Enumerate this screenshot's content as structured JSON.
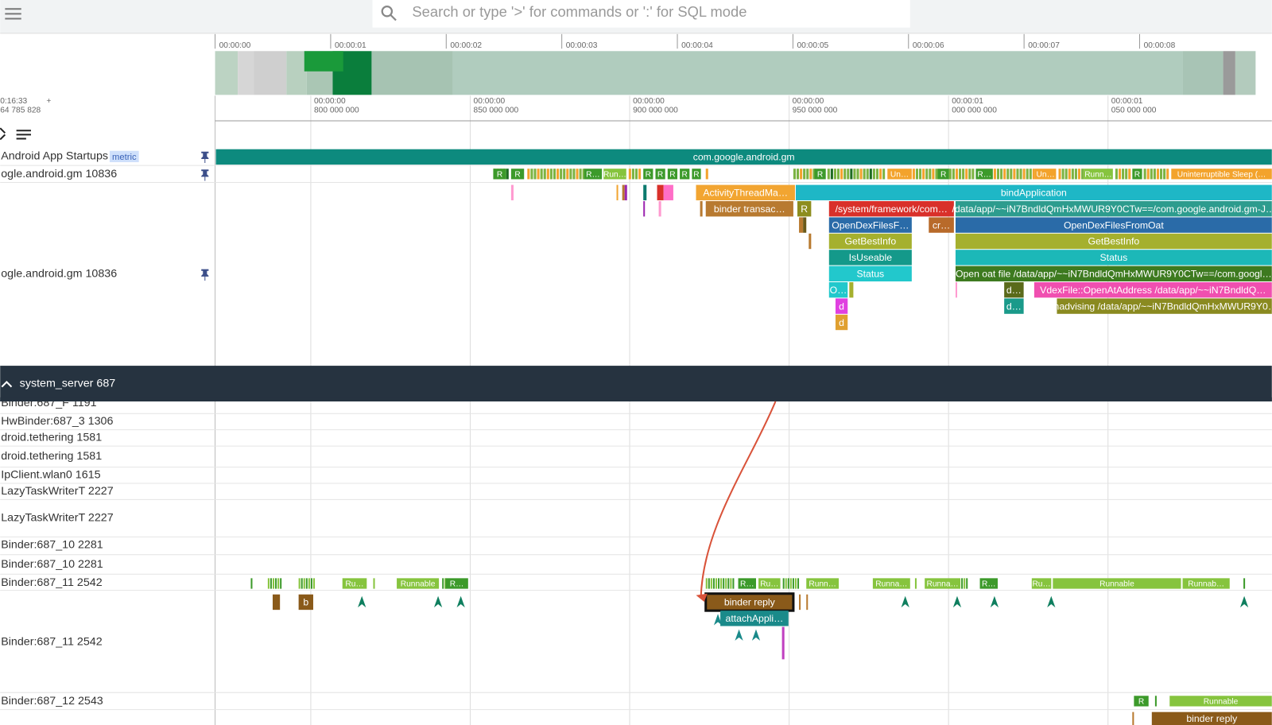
{
  "search": {
    "placeholder": "Search or type '>' for commands or ':' for SQL mode"
  },
  "overview": {
    "ticks": [
      "00:00:00",
      "00:00:01",
      "00:00:02",
      "00:00:03",
      "00:00:04",
      "00:00:05",
      "00:00:06",
      "00:00:07",
      "00:00:08"
    ]
  },
  "timeline": {
    "offset": {
      "time": "0:16:33",
      "plus": "+",
      "ns": "64 785 828"
    },
    "ticks": [
      {
        "line1": "00:00:00",
        "line2": "800 000 000"
      },
      {
        "line1": "00:00:00",
        "line2": "850 000 000"
      },
      {
        "line1": "00:00:00",
        "line2": "900 000 000"
      },
      {
        "line1": "00:00:00",
        "line2": "950 000 000"
      },
      {
        "line1": "00:00:01",
        "line2": "000 000 000"
      },
      {
        "line1": "00:00:01",
        "line2": "050 000 000"
      }
    ]
  },
  "tracks": [
    {
      "name": "Android App Startups",
      "tag": "metric",
      "slices": [
        "com.google.android.gm"
      ]
    },
    {
      "name": "ogle.android.gm 10836",
      "states": [
        "R",
        "R",
        "R…",
        "Run…",
        "R",
        "R",
        "R",
        "R",
        "R",
        "R",
        "Un…",
        "R",
        "R…",
        "Un…",
        "Runn…",
        "R",
        "Uninterruptible Sleep (…"
      ]
    },
    {
      "name": "ogle.android.gm 10836",
      "slices": [
        "ActivityThreadMa…",
        "bindApplication",
        "binder transac…",
        "R",
        "/system/framework/com…",
        "/data/app/~~iN7BndldQmHxMWUR9Y0CTw==/com.google.android.gm-J…",
        "OpenDexFilesF…",
        "cr…",
        "OpenDexFilesFromOat",
        "GetBestInfo",
        "GetBestInfo",
        "IsUseable",
        "Status",
        "Status",
        "Open oat file /data/app/~~iN7BndldQmHxMWUR9Y0CTw==/com.googl…",
        "O…",
        "d…",
        "VdexFile::OpenAtAddress /data/app/~~iN7BndldQ…",
        "d",
        "d…",
        "madvising /data/app/~~iN7BndldQmHxMWUR9Y0…",
        "d"
      ]
    }
  ],
  "system_server": {
    "title": "system_server 687",
    "threads": [
      {
        "name": "Binder:687_F 1191"
      },
      {
        "name": "HwBinder:687_3 1306"
      },
      {
        "name": "droid.tethering 1581"
      },
      {
        "name": "droid.tethering 1581"
      },
      {
        "name": "IpClient.wlan0 1615"
      },
      {
        "name": "LazyTaskWriterT 2227"
      },
      {
        "name": "LazyTaskWriterT 2227"
      },
      {
        "name": "Binder:687_10 2281"
      },
      {
        "name": "Binder:687_10 2281"
      },
      {
        "name": "Binder:687_11 2542",
        "states": [
          "Ru…",
          "Runnable",
          "R…",
          "R…",
          "Ru…",
          "Runn…",
          "Runna…",
          "Runna…",
          "R…",
          "Ru…",
          "Runnable",
          "Runnab…"
        ]
      },
      {
        "name": "Binder:687_11 2542",
        "slices": [
          "b",
          "binder reply",
          "attachAppli…"
        ]
      },
      {
        "name": "Binder:687_12 2543",
        "states": [
          "R",
          "Runnable"
        ],
        "slices": [
          "binder reply"
        ]
      }
    ]
  }
}
